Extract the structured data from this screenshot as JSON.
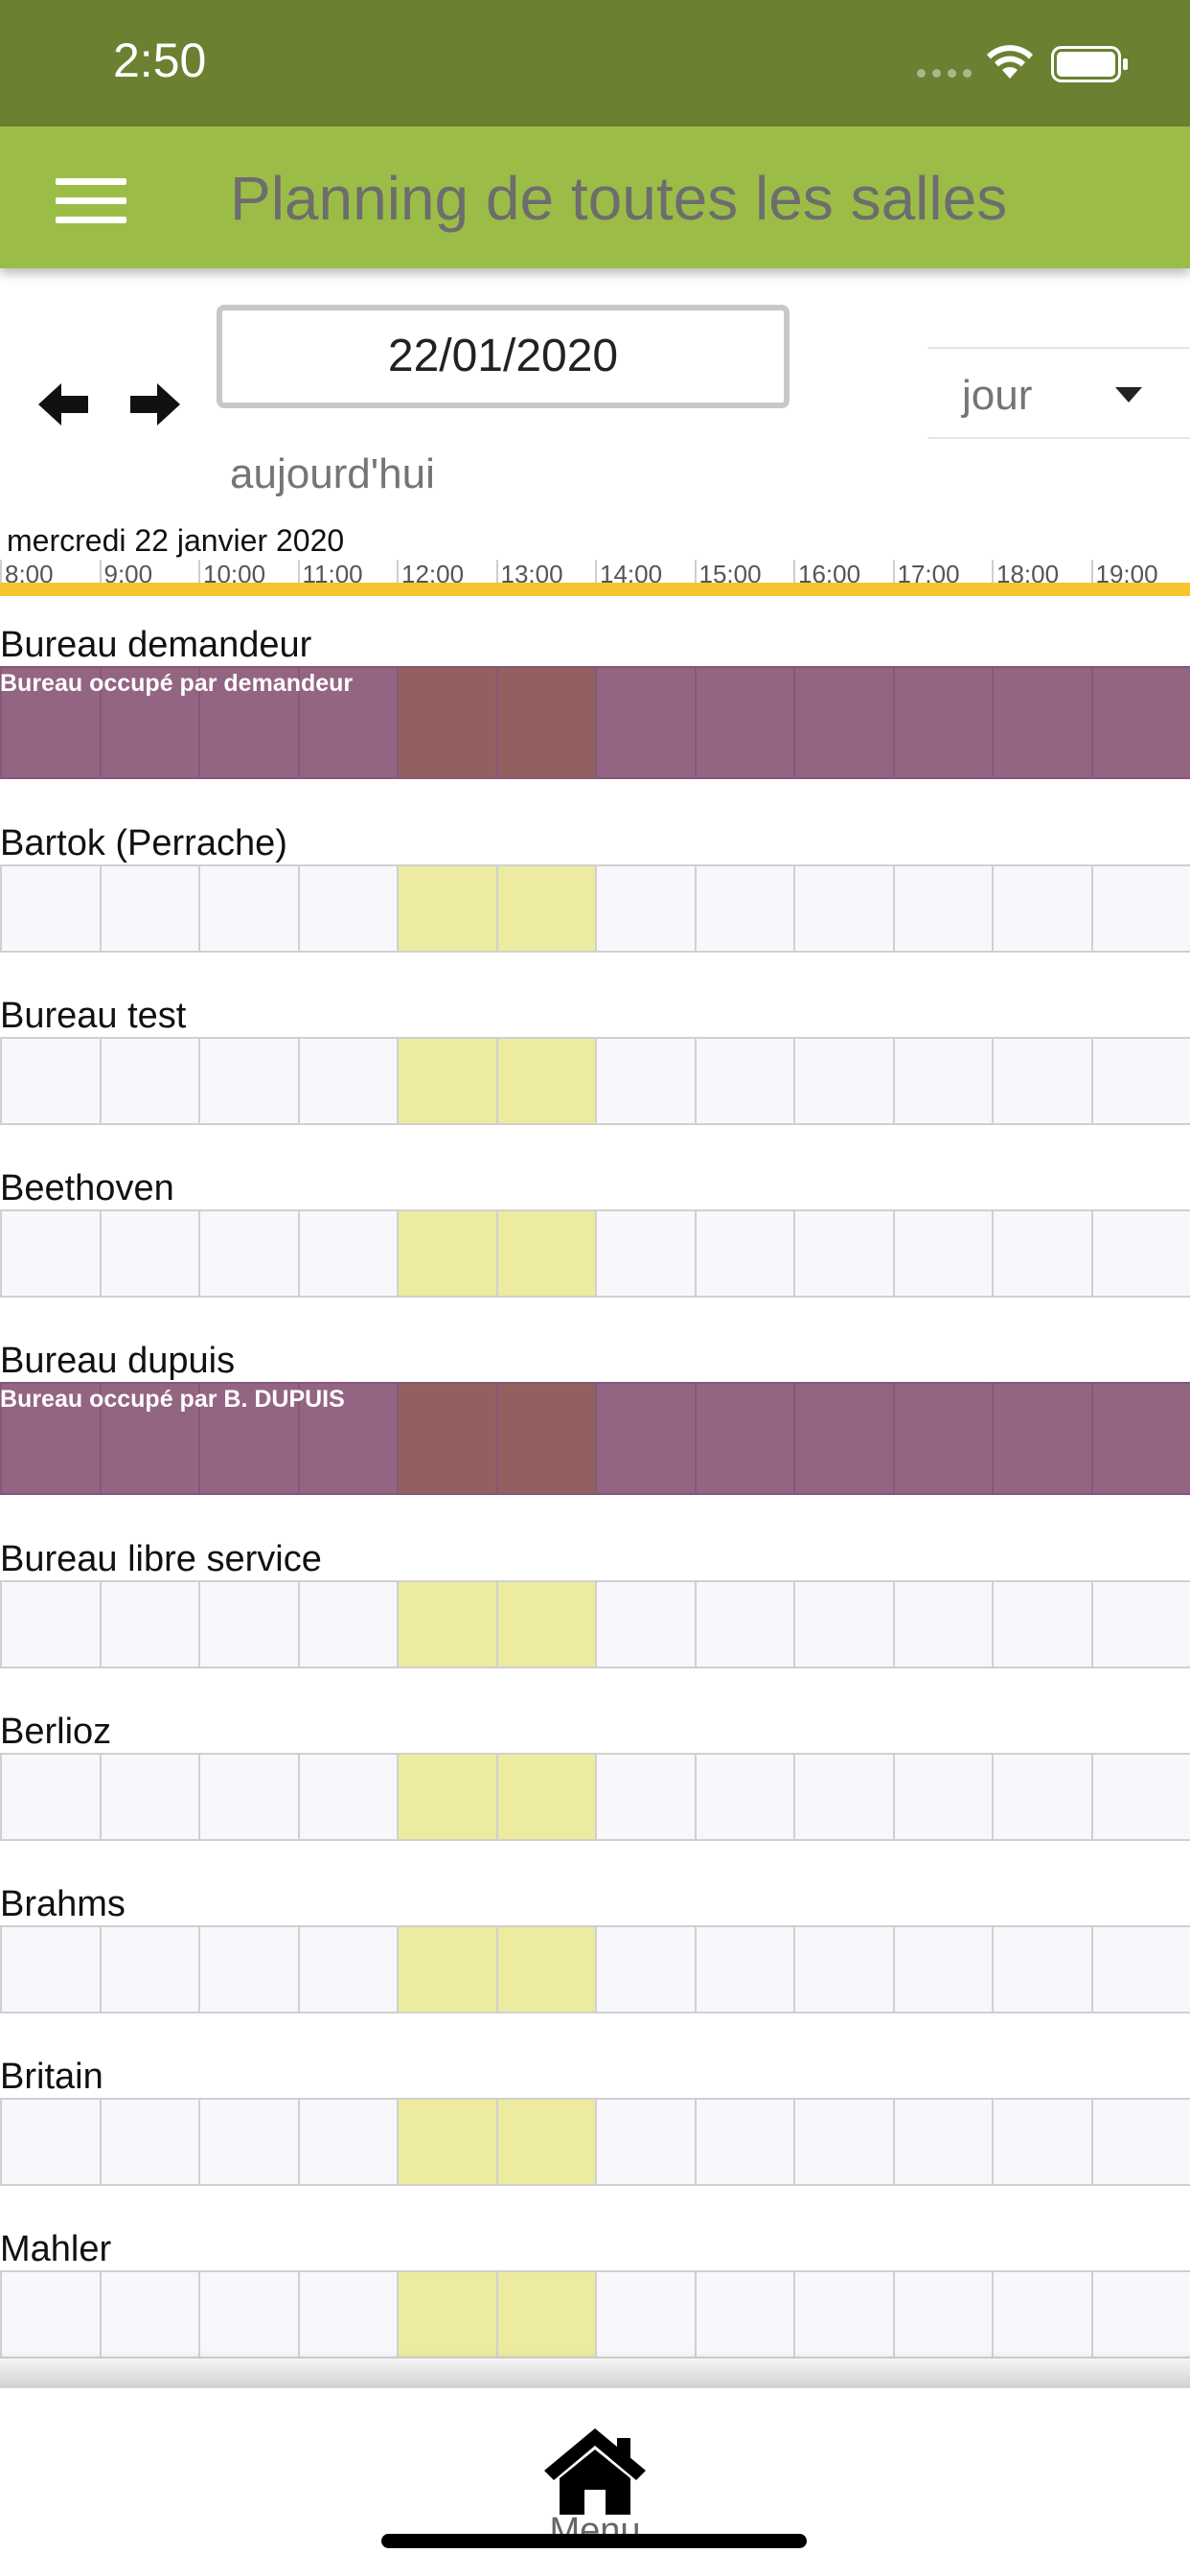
{
  "status_bar": {
    "time": "2:50"
  },
  "app_bar": {
    "title": "Planning de toutes les salles"
  },
  "controls": {
    "date_value": "22/01/2020",
    "view": "jour",
    "today_label": "aujourd'hui"
  },
  "schedule": {
    "day_label": "mercredi 22 janvier 2020",
    "hours": [
      "8:00",
      "9:00",
      "10:00",
      "11:00",
      "12:00",
      "13:00",
      "14:00",
      "15:00",
      "16:00",
      "17:00",
      "18:00",
      "19:00"
    ],
    "rooms": [
      {
        "name": "Bureau demandeur",
        "booking": "Bureau occupé par demandeur"
      },
      {
        "name": "Bartok (Perrache)",
        "booking": ""
      },
      {
        "name": "Bureau test",
        "booking": ""
      },
      {
        "name": "Beethoven",
        "booking": ""
      },
      {
        "name": "Bureau dupuis",
        "booking": "Bureau occupé par B. DUPUIS"
      },
      {
        "name": "Bureau libre service",
        "booking": ""
      },
      {
        "name": "Berlioz",
        "booking": ""
      },
      {
        "name": "Brahms",
        "booking": ""
      },
      {
        "name": "Britain",
        "booking": ""
      },
      {
        "name": "Mahler",
        "booking": ""
      }
    ]
  },
  "bottom_nav": {
    "menu_label": "Menu"
  }
}
